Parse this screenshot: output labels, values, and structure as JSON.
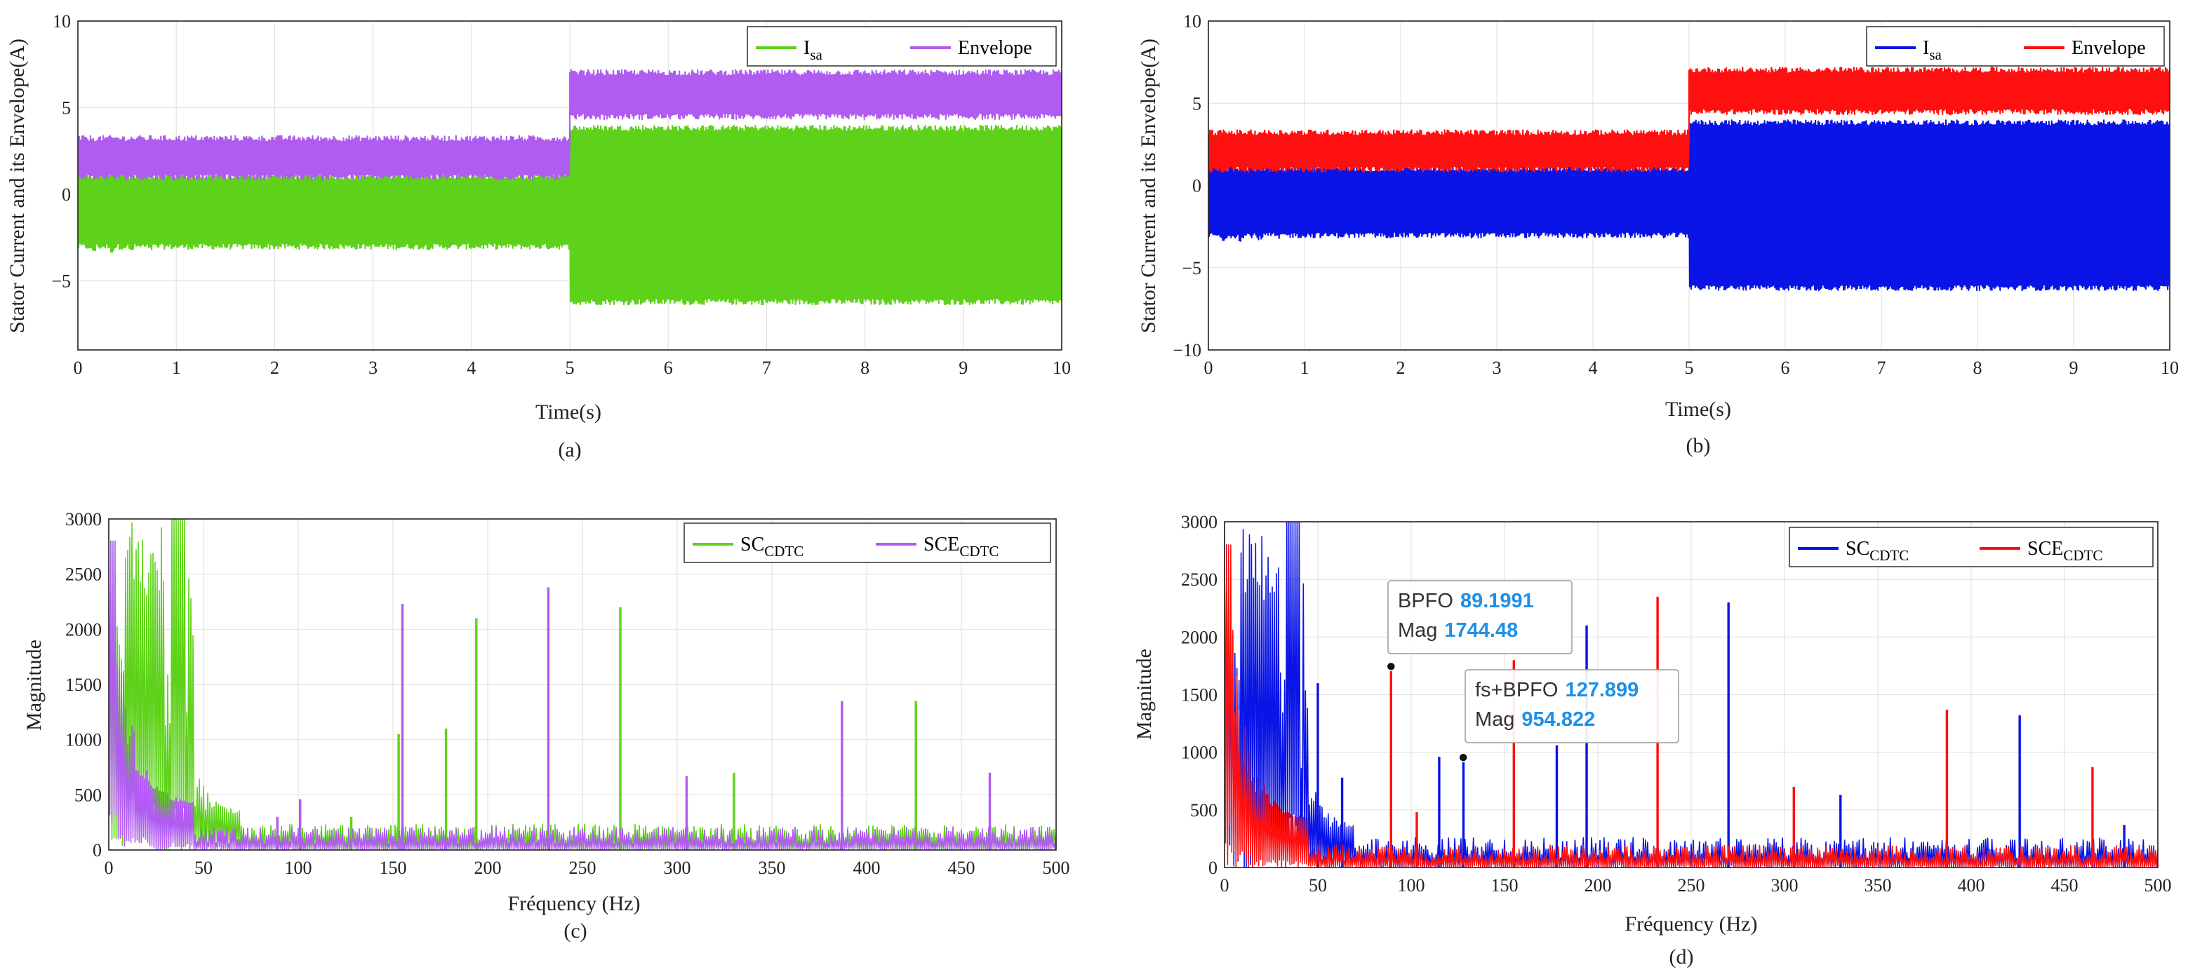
{
  "colors": {
    "green": "#5ed21a",
    "purple": "#b05cf0",
    "blue": "#0a14e6",
    "red": "#ff1010",
    "datatip_value": "#1e90e6"
  },
  "chart_data": [
    {
      "id": "a",
      "type": "line",
      "caption": "(a)",
      "xlabel": "Time(s)",
      "ylabel": "Stator Current and its Envelope(A)",
      "xlim": [
        0,
        10
      ],
      "ylim": [
        -9,
        10
      ],
      "xticks": [
        0,
        1,
        2,
        3,
        4,
        5,
        6,
        7,
        8,
        9,
        10
      ],
      "yticks": [
        -5,
        0,
        5,
        10
      ],
      "grid": true,
      "legend_position": "top-right",
      "series": [
        {
          "name": "Isa",
          "name_main": "I",
          "name_sub": "sa",
          "color": "#5ed21a",
          "segments": [
            {
              "t": [
                0,
                5
              ],
              "min": -3.0,
              "max": 1.0,
              "startup_oscillation": true
            },
            {
              "t": [
                5,
                10
              ],
              "min": -6.2,
              "max": 3.8
            }
          ]
        },
        {
          "name": "Envelope",
          "name_main": "Envelope",
          "name_sub": "",
          "color": "#b05cf0",
          "segments": [
            {
              "t": [
                0,
                5
              ],
              "min": 1.0,
              "max": 3.2
            },
            {
              "t": [
                5,
                10
              ],
              "min": 4.5,
              "max": 7.0
            }
          ]
        }
      ]
    },
    {
      "id": "b",
      "type": "line",
      "caption": "(b)",
      "xlabel": "Time(s)",
      "ylabel": "Stator Current and its Envelope(A)",
      "xlim": [
        0,
        10
      ],
      "ylim": [
        -10,
        10
      ],
      "xticks": [
        0,
        1,
        2,
        3,
        4,
        5,
        6,
        7,
        8,
        9,
        10
      ],
      "yticks": [
        -10,
        -5,
        0,
        5,
        10
      ],
      "grid": true,
      "legend_position": "top-right",
      "series": [
        {
          "name": "Isa",
          "name_main": "I",
          "name_sub": "sa",
          "color": "#0a14e6",
          "segments": [
            {
              "t": [
                0,
                5
              ],
              "min": -3.0,
              "max": 1.0,
              "startup_oscillation": true
            },
            {
              "t": [
                5,
                10
              ],
              "min": -6.2,
              "max": 3.8
            }
          ]
        },
        {
          "name": "Envelope",
          "name_main": "Envelope",
          "name_sub": "",
          "color": "#ff1010",
          "segments": [
            {
              "t": [
                0,
                5
              ],
              "min": 1.0,
              "max": 3.2
            },
            {
              "t": [
                5,
                10
              ],
              "min": 4.5,
              "max": 7.0
            }
          ]
        }
      ]
    },
    {
      "id": "c",
      "type": "line",
      "caption": "(c)",
      "xlabel": "Fréquency (Hz)",
      "ylabel": "Magnitude",
      "xlim": [
        0,
        500
      ],
      "ylim": [
        0,
        3000
      ],
      "xticks": [
        0,
        50,
        100,
        150,
        200,
        250,
        300,
        350,
        400,
        450,
        500
      ],
      "yticks": [
        0,
        500,
        1000,
        1500,
        2000,
        2500,
        3000
      ],
      "grid": true,
      "legend_position": "top-right",
      "series": [
        {
          "name": "SCCDTC",
          "name_main": "SC",
          "name_sub": "CDTC",
          "color": "#5ed21a",
          "noise_floor": 180,
          "peaks": [
            [
              153,
              1050
            ],
            [
              178,
              1100
            ],
            [
              194,
              2100
            ],
            [
              270,
              2200
            ],
            [
              330,
              700
            ],
            [
              426,
              1350
            ],
            [
              128,
              300
            ],
            [
              101,
              420
            ]
          ]
        },
        {
          "name": "SCECDTC",
          "name_main": "SCE",
          "name_sub": "CDTC",
          "color": "#b05cf0",
          "noise_floor": 160,
          "peaks": [
            [
              89,
              300
            ],
            [
              155,
              2230
            ],
            [
              232,
              2380
            ],
            [
              305,
              670
            ],
            [
              387,
              1350
            ],
            [
              465,
              700
            ],
            [
              101,
              460
            ]
          ]
        }
      ]
    },
    {
      "id": "d",
      "type": "line",
      "caption": "(d)",
      "xlabel": "Fréquency (Hz)",
      "ylabel": "Magnitude",
      "xlim": [
        0,
        500
      ],
      "ylim": [
        0,
        3000
      ],
      "xticks": [
        0,
        50,
        100,
        150,
        200,
        250,
        300,
        350,
        400,
        450,
        500
      ],
      "yticks": [
        0,
        500,
        1000,
        1500,
        2000,
        2500,
        3000
      ],
      "grid": true,
      "legend_position": "top-right",
      "series": [
        {
          "name": "SCCDTC",
          "name_main": "SC",
          "name_sub": "CDTC",
          "color": "#0a14e6",
          "noise_floor": 200,
          "peaks": [
            [
              50,
              1600
            ],
            [
              63,
              780
            ],
            [
              115,
              960
            ],
            [
              128,
              950
            ],
            [
              178,
              1060
            ],
            [
              194,
              2100
            ],
            [
              270,
              2300
            ],
            [
              330,
              630
            ],
            [
              426,
              1320
            ],
            [
              482,
              370
            ]
          ]
        },
        {
          "name": "SCECDTC",
          "name_main": "SCE",
          "name_sub": "CDTC",
          "color": "#ff1010",
          "noise_floor": 150,
          "peaks": [
            [
              89.2,
              1744
            ],
            [
              103,
              480
            ],
            [
              155,
              1800
            ],
            [
              232,
              2350
            ],
            [
              305,
              700
            ],
            [
              387,
              1370
            ],
            [
              465,
              870
            ]
          ]
        }
      ],
      "datatips": [
        {
          "x": 89.1991,
          "y": 1744.48,
          "label1": "BPFO",
          "value1": "89.1991",
          "label2": "Mag",
          "value2": "1744.48"
        },
        {
          "x": 127.899,
          "y": 954.822,
          "label1": "fs+BPFO",
          "value1": "127.899",
          "label2": "Mag",
          "value2": "954.822"
        }
      ]
    }
  ]
}
